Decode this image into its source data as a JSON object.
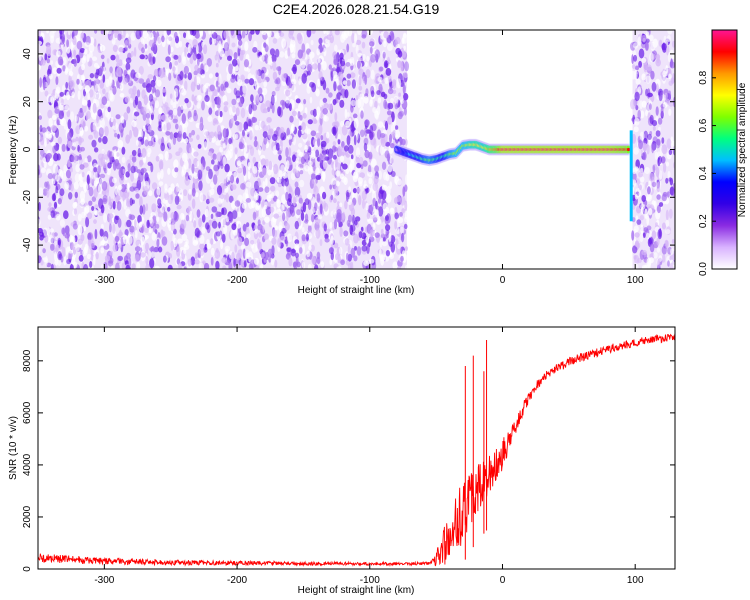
{
  "title": "C2E4.2026.028.21.54.G19",
  "chart_data": [
    {
      "type": "heatmap",
      "xlabel": "Height of straight line (km)",
      "ylabel": "Frequency (Hz)",
      "xlim": [
        -350,
        130
      ],
      "ylim": [
        -50,
        50
      ],
      "x_ticks": [
        -300,
        -200,
        -100,
        0,
        100
      ],
      "x_tick_labels": [
        "-300",
        "-200",
        "-100",
        "0",
        "100"
      ],
      "y_ticks": [
        -40,
        -20,
        0,
        20,
        40
      ],
      "y_tick_labels": [
        "-40",
        "-20",
        "0",
        "20",
        "40"
      ],
      "grid": false,
      "noise_regions_km": [
        [
          -350,
          -72
        ],
        [
          98,
          130
        ]
      ],
      "noise_amplitude_range": [
        0.0,
        0.25
      ],
      "signal_trace": {
        "x": [
          -80,
          -75,
          -70,
          -65,
          -60,
          -55,
          -50,
          -45,
          -40,
          -35,
          -30,
          -25,
          -20,
          -15,
          -10,
          -5,
          0,
          10,
          20,
          40,
          60,
          80,
          95
        ],
        "y": [
          0,
          -1,
          -2,
          -3,
          -4,
          -4.5,
          -4,
          -3,
          -2,
          -1.5,
          1.5,
          2,
          2,
          1,
          0,
          0,
          0,
          0,
          0,
          0,
          0,
          0,
          0
        ],
        "amplitude": [
          0.1,
          0.3,
          0.45,
          0.5,
          0.55,
          0.6,
          0.55,
          0.5,
          0.6,
          0.65,
          0.65,
          0.7,
          0.75,
          0.7,
          0.8,
          0.85,
          0.95,
          0.95,
          0.95,
          0.95,
          0.95,
          0.95,
          0.9
        ]
      },
      "edge_feature": {
        "x": 97,
        "y_range": [
          -30,
          8
        ]
      },
      "colorbar": {
        "label": "Normalized spectral amplitude",
        "range": [
          0.0,
          1.0
        ],
        "ticks": [
          0.0,
          0.2,
          0.4,
          0.6,
          0.8
        ],
        "tick_labels": [
          "0.0",
          "0.2",
          "0.4",
          "0.6",
          "0.8"
        ],
        "colors": [
          "#ffffff",
          "#d9b3ff",
          "#8a2be2",
          "#3200e6",
          "#0000ff",
          "#00bfff",
          "#00ff80",
          "#7fff00",
          "#ffff00",
          "#ff9900",
          "#ff0000",
          "#ff1493"
        ]
      }
    },
    {
      "type": "line",
      "xlabel": "Height of straight line (km)",
      "ylabel": "SNR (10 * v/v)",
      "xlim": [
        -350,
        130
      ],
      "ylim": [
        0,
        9300
      ],
      "x_ticks": [
        -300,
        -200,
        -100,
        0,
        100
      ],
      "x_tick_labels": [
        "-300",
        "-200",
        "-100",
        "0",
        "100"
      ],
      "y_ticks": [
        0,
        2000,
        4000,
        6000,
        8000
      ],
      "y_tick_labels": [
        "0",
        "2000",
        "4000",
        "6000",
        "8000"
      ],
      "grid": false,
      "series": [
        {
          "color": "#ff0000",
          "x": [
            -350,
            -330,
            -300,
            -250,
            -200,
            -150,
            -100,
            -75,
            -60,
            -55,
            -50,
            -45,
            -40,
            -35,
            -30,
            -25,
            -20,
            -15,
            -10,
            -5,
            0,
            5,
            10,
            15,
            20,
            25,
            30,
            40,
            50,
            60,
            70,
            80,
            90,
            100,
            110,
            120,
            130
          ],
          "y": [
            420,
            380,
            300,
            250,
            230,
            210,
            200,
            200,
            210,
            250,
            400,
            800,
            1200,
            1700,
            2200,
            2600,
            3000,
            3300,
            3600,
            4000,
            4400,
            4900,
            5500,
            6100,
            6600,
            7000,
            7300,
            7700,
            7950,
            8150,
            8300,
            8450,
            8600,
            8700,
            8800,
            8850,
            8900
          ],
          "noise_amp": [
            180,
            160,
            120,
            100,
            80,
            70,
            60,
            60,
            60,
            80,
            300,
            800,
            900,
            1100,
            1200,
            1000,
            1000,
            900,
            800,
            700,
            600,
            400,
            300,
            250,
            200,
            200,
            180,
            180,
            170,
            170,
            160,
            160,
            160,
            160,
            150,
            150,
            150
          ],
          "spikes": [
            {
              "x": -28,
              "y": 7800
            },
            {
              "x": -22,
              "y": 8200
            },
            {
              "x": -12,
              "y": 8800
            },
            {
              "x": -14,
              "y": 7600
            }
          ]
        }
      ]
    }
  ]
}
